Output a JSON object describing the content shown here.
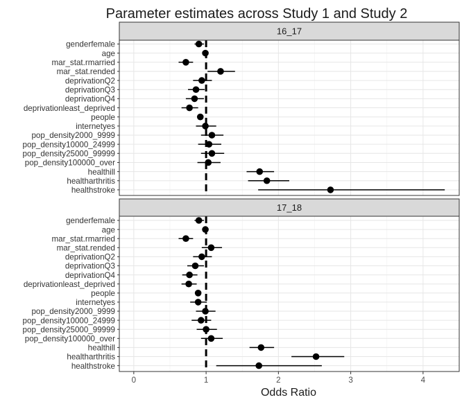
{
  "chart_data": {
    "type": "scatter",
    "title": "Parameter estimates across Study 1 and Study 2",
    "xlabel": "Odds Ratio",
    "ylabel": "",
    "xlim": [
      -0.2,
      4.5
    ],
    "x_ticks": [
      0,
      1,
      2,
      3,
      4
    ],
    "reference_line": 1,
    "grid": true,
    "legend": "none",
    "categories": [
      "genderfemale",
      "age",
      "mar_stat.rmarried",
      "mar_stat.rended",
      "deprivationQ2",
      "deprivationQ3",
      "deprivationQ4",
      "deprivationleast_deprived",
      "people",
      "internetyes",
      "pop_density2000_9999",
      "pop_density10000_24999",
      "pop_density25000_99999",
      "pop_density100000_over",
      "healthill",
      "healtharthritis",
      "healthstroke"
    ],
    "panels": [
      {
        "strip": "16_17",
        "points": [
          {
            "label": "genderfemale",
            "estimate": 0.9,
            "low": 0.84,
            "high": 0.97
          },
          {
            "label": "age",
            "estimate": 0.99,
            "low": 0.98,
            "high": 1.0
          },
          {
            "label": "mar_stat.rmarried",
            "estimate": 0.72,
            "low": 0.62,
            "high": 0.82
          },
          {
            "label": "mar_stat.rended",
            "estimate": 1.2,
            "low": 1.02,
            "high": 1.4
          },
          {
            "label": "deprivationQ2",
            "estimate": 0.94,
            "low": 0.82,
            "high": 1.08
          },
          {
            "label": "deprivationQ3",
            "estimate": 0.86,
            "low": 0.75,
            "high": 0.98
          },
          {
            "label": "deprivationQ4",
            "estimate": 0.84,
            "low": 0.72,
            "high": 0.97
          },
          {
            "label": "deprivationleast_deprived",
            "estimate": 0.77,
            "low": 0.66,
            "high": 0.89
          },
          {
            "label": "people",
            "estimate": 0.92,
            "low": 0.88,
            "high": 0.96
          },
          {
            "label": "internetyes",
            "estimate": 0.99,
            "low": 0.86,
            "high": 1.14
          },
          {
            "label": "pop_density2000_9999",
            "estimate": 1.08,
            "low": 0.93,
            "high": 1.24
          },
          {
            "label": "pop_density10000_24999",
            "estimate": 1.04,
            "low": 0.89,
            "high": 1.21
          },
          {
            "label": "pop_density25000_99999",
            "estimate": 1.08,
            "low": 0.93,
            "high": 1.25
          },
          {
            "label": "pop_density100000_over",
            "estimate": 1.03,
            "low": 0.88,
            "high": 1.2
          },
          {
            "label": "healthill",
            "estimate": 1.74,
            "low": 1.56,
            "high": 1.94
          },
          {
            "label": "healtharthritis",
            "estimate": 1.84,
            "low": 1.58,
            "high": 2.15
          },
          {
            "label": "healthstroke",
            "estimate": 2.72,
            "low": 1.72,
            "high": 4.3
          }
        ]
      },
      {
        "strip": "17_18",
        "points": [
          {
            "label": "genderfemale",
            "estimate": 0.9,
            "low": 0.84,
            "high": 0.97
          },
          {
            "label": "age",
            "estimate": 0.99,
            "low": 0.98,
            "high": 1.0
          },
          {
            "label": "mar_stat.rmarried",
            "estimate": 0.72,
            "low": 0.62,
            "high": 0.82
          },
          {
            "label": "mar_stat.rended",
            "estimate": 1.07,
            "low": 0.94,
            "high": 1.22
          },
          {
            "label": "deprivationQ2",
            "estimate": 0.94,
            "low": 0.82,
            "high": 1.08
          },
          {
            "label": "deprivationQ3",
            "estimate": 0.85,
            "low": 0.74,
            "high": 0.97
          },
          {
            "label": "deprivationQ4",
            "estimate": 0.77,
            "low": 0.67,
            "high": 0.88
          },
          {
            "label": "deprivationleast_deprived",
            "estimate": 0.76,
            "low": 0.66,
            "high": 0.87
          },
          {
            "label": "people",
            "estimate": 0.89,
            "low": 0.85,
            "high": 0.93
          },
          {
            "label": "internetyes",
            "estimate": 0.89,
            "low": 0.78,
            "high": 1.01
          },
          {
            "label": "pop_density2000_9999",
            "estimate": 0.99,
            "low": 0.86,
            "high": 1.13
          },
          {
            "label": "pop_density10000_24999",
            "estimate": 0.93,
            "low": 0.8,
            "high": 1.07
          },
          {
            "label": "pop_density25000_99999",
            "estimate": 1.0,
            "low": 0.87,
            "high": 1.15
          },
          {
            "label": "pop_density100000_over",
            "estimate": 1.07,
            "low": 0.93,
            "high": 1.23
          },
          {
            "label": "healthill",
            "estimate": 1.76,
            "low": 1.6,
            "high": 1.94
          },
          {
            "label": "healtharthritis",
            "estimate": 2.52,
            "low": 2.18,
            "high": 2.91
          },
          {
            "label": "healthstroke",
            "estimate": 1.73,
            "low": 1.14,
            "high": 2.6
          }
        ]
      }
    ]
  }
}
